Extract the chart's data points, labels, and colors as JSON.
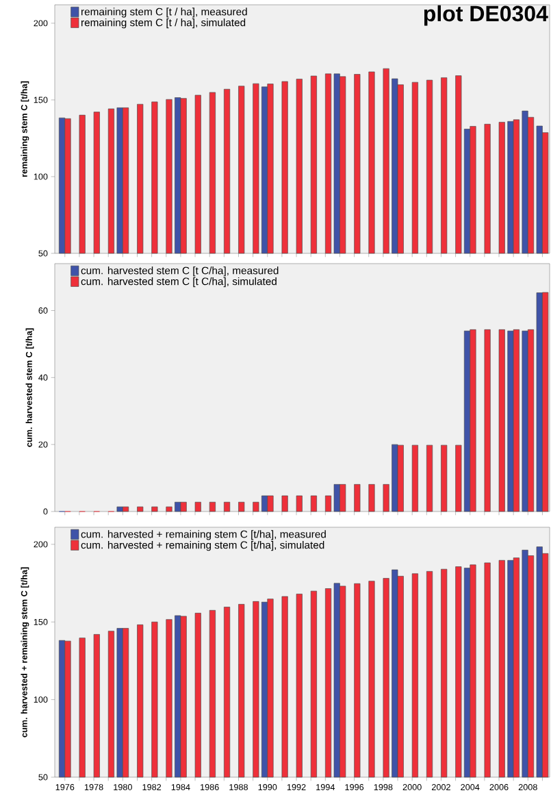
{
  "chart_data": [
    {
      "type": "bar",
      "title": "plot DE0304",
      "ylabel": "remaining stem C [t/ha]",
      "categories": [
        "1976",
        null,
        "1978",
        null,
        "1980",
        null,
        "1982",
        null,
        "1984",
        null,
        "1986",
        null,
        "1988",
        null,
        "1990",
        null,
        "1992",
        null,
        "1994",
        null,
        "1996",
        null,
        "1998",
        null,
        "2000",
        null,
        "2002",
        null,
        "2004",
        null,
        "2006",
        null,
        "2008",
        null
      ],
      "series": [
        {
          "name": "remaining stem C [t / ha], measured",
          "color": "#3f53a8",
          "values": [
            138.3,
            null,
            null,
            null,
            144.9,
            null,
            null,
            null,
            151.5,
            null,
            null,
            null,
            null,
            null,
            158.5,
            null,
            null,
            null,
            null,
            167.0,
            null,
            null,
            null,
            163.8,
            null,
            null,
            null,
            null,
            131.0,
            null,
            null,
            136.0,
            142.8,
            133.0
          ]
        },
        {
          "name": "remaining stem C [t / ha], simulated",
          "color": "#ee303a",
          "values": [
            137.8,
            140.1,
            142.1,
            144.2,
            144.9,
            147.2,
            148.7,
            150.3,
            151.0,
            153.1,
            154.9,
            157.0,
            159.0,
            160.6,
            160.4,
            162.0,
            163.6,
            165.6,
            167.0,
            165.2,
            166.7,
            168.3,
            170.4,
            159.9,
            161.5,
            162.9,
            164.5,
            165.8,
            132.8,
            134.2,
            135.5,
            137.1,
            138.7,
            128.7
          ]
        }
      ],
      "ylim": [
        50,
        212
      ],
      "yticks": [
        50,
        100,
        150,
        200
      ],
      "legend": "top left",
      "tick_labels": "y"
    },
    {
      "type": "bar",
      "ylabel": "cum. harvested stem C [t/ha]",
      "categories": [
        "1976",
        null,
        "1978",
        null,
        "1980",
        null,
        "1982",
        null,
        "1984",
        null,
        "1986",
        null,
        "1988",
        null,
        "1990",
        null,
        "1992",
        null,
        "1994",
        null,
        "1996",
        null,
        "1998",
        null,
        "2000",
        null,
        "2002",
        null,
        "2004",
        null,
        "2006",
        null,
        "2008",
        null
      ],
      "series": [
        {
          "name": "cum. harvested stem C [t C/ha], measured",
          "color": "#3f53a8",
          "values": [
            0,
            null,
            null,
            null,
            1.4,
            null,
            null,
            null,
            2.8,
            null,
            null,
            null,
            null,
            null,
            4.7,
            null,
            null,
            null,
            null,
            8.1,
            null,
            null,
            null,
            20.0,
            null,
            null,
            null,
            null,
            53.9,
            null,
            null,
            53.9,
            53.9,
            65.3
          ]
        },
        {
          "name": "cum. harvested stem C [t C/ha], simulated",
          "color": "#ee303a",
          "values": [
            0,
            0,
            0,
            0,
            1.4,
            1.4,
            1.4,
            1.4,
            2.8,
            2.8,
            2.8,
            2.8,
            2.8,
            2.8,
            4.7,
            4.7,
            4.7,
            4.7,
            4.7,
            8.1,
            8.1,
            8.1,
            8.1,
            19.8,
            19.8,
            19.8,
            19.8,
            19.8,
            54.3,
            54.3,
            54.3,
            54.3,
            54.3,
            65.4
          ]
        }
      ],
      "ylim": [
        0,
        74
      ],
      "yticks": [
        0,
        20,
        40,
        60
      ],
      "legend": "top left",
      "tick_labels": "y"
    },
    {
      "type": "bar",
      "ylabel": "cum. harvested + remaining stem C [t/ha]",
      "categories": [
        "1976",
        null,
        "1978",
        null,
        "1980",
        null,
        "1982",
        null,
        "1984",
        null,
        "1986",
        null,
        "1988",
        null,
        "1990",
        null,
        "1992",
        null,
        "1994",
        null,
        "1996",
        null,
        "1998",
        null,
        "2000",
        null,
        "2002",
        null,
        "2004",
        null,
        "2006",
        null,
        "2008",
        null
      ],
      "series": [
        {
          "name": "cum. harvested + remaining stem C [t/ha], measured",
          "color": "#3f53a8",
          "values": [
            138.1,
            null,
            null,
            null,
            145.9,
            null,
            null,
            null,
            154.1,
            null,
            null,
            null,
            null,
            null,
            162.8,
            null,
            null,
            null,
            null,
            174.9,
            null,
            null,
            null,
            183.6,
            null,
            null,
            null,
            null,
            184.7,
            null,
            null,
            189.7,
            196.3,
            198.4
          ]
        },
        {
          "name": "cum. harvested + remaining stem C [t/ha], simulated",
          "color": "#ee303a",
          "values": [
            137.7,
            139.7,
            142.0,
            144.1,
            145.9,
            148.2,
            150.0,
            151.6,
            153.7,
            155.7,
            157.5,
            159.6,
            161.4,
            163.2,
            164.8,
            166.4,
            168.0,
            169.9,
            171.5,
            173.1,
            174.7,
            176.3,
            178.1,
            179.5,
            181.1,
            182.6,
            184.0,
            185.6,
            186.8,
            188.1,
            189.7,
            191.3,
            192.7,
            194.1
          ]
        }
      ],
      "ylim": [
        50,
        211
      ],
      "yticks": [
        50,
        100,
        150,
        200
      ],
      "legend": "top left"
    }
  ]
}
